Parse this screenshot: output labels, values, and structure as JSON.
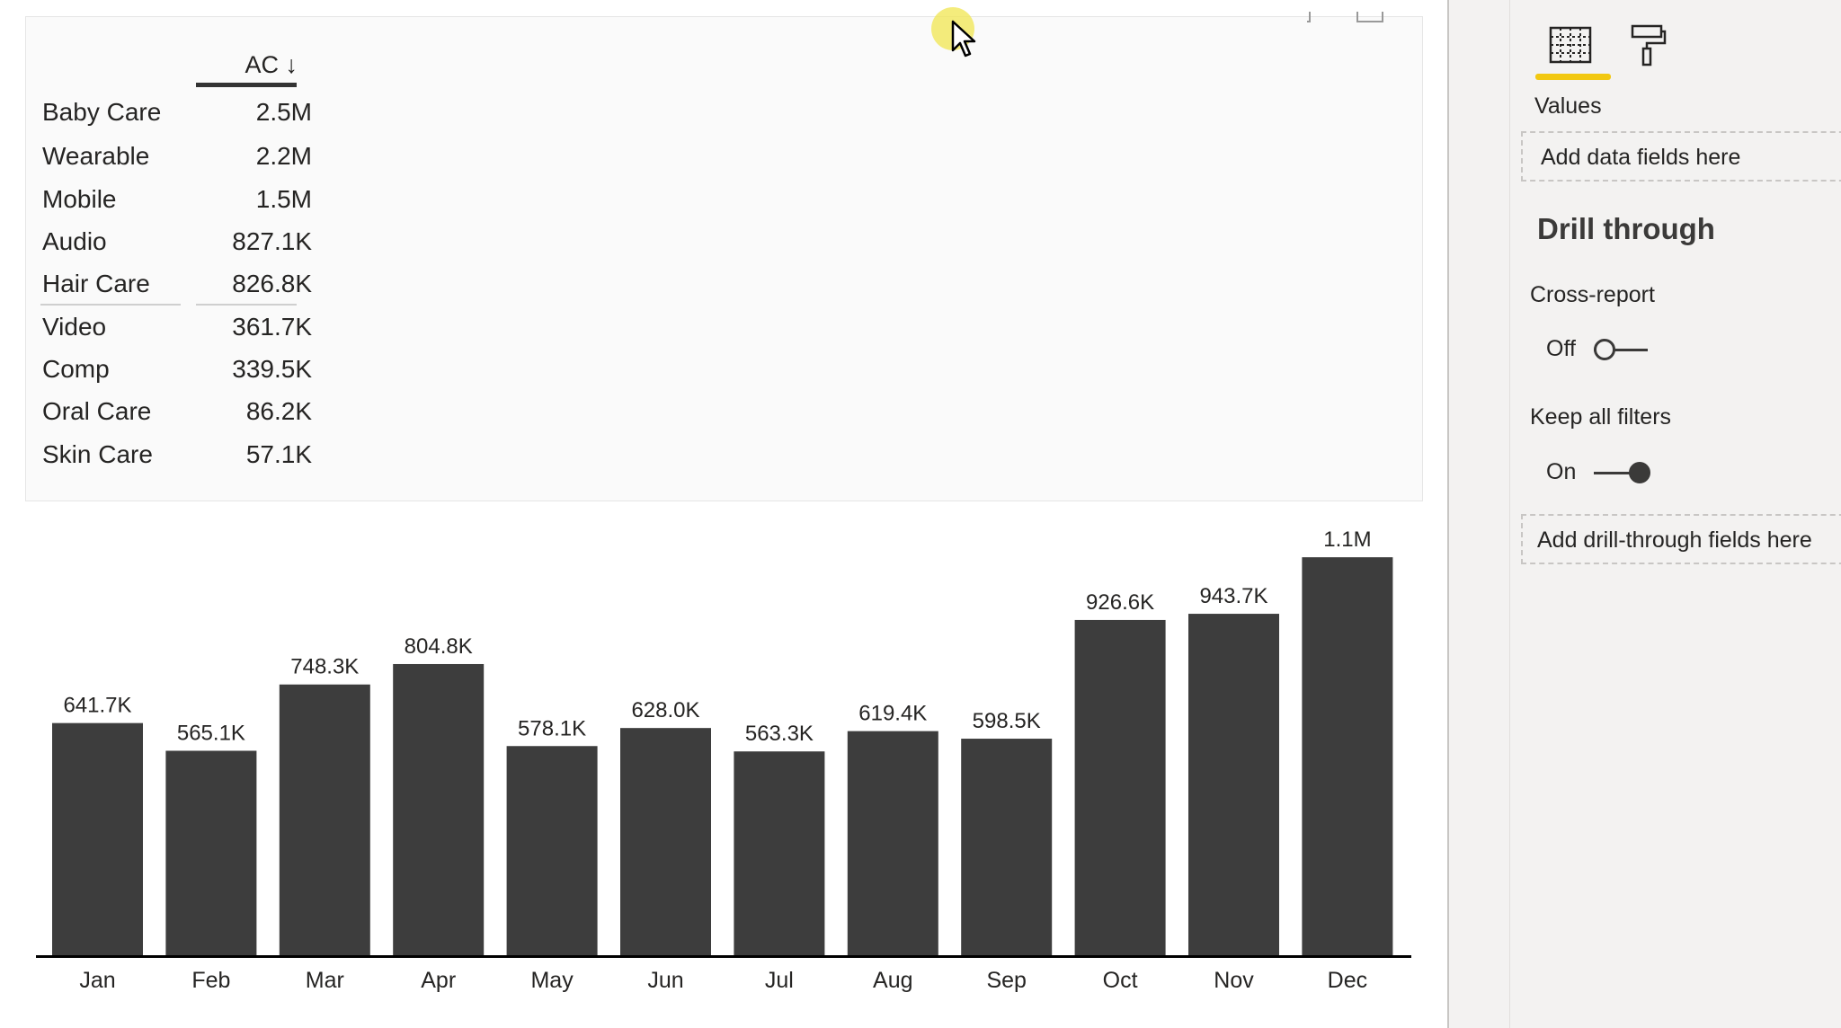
{
  "table": {
    "header": "AC ↓",
    "rows": [
      {
        "category": "Baby Care",
        "value": "2.5M"
      },
      {
        "category": "Wearable",
        "value": "2.2M"
      },
      {
        "category": "Mobile",
        "value": "1.5M"
      },
      {
        "category": "Audio",
        "value": "827.1K"
      },
      {
        "category": "Hair Care",
        "value": "826.8K"
      },
      {
        "category": "Video",
        "value": "361.7K"
      },
      {
        "category": "Comp",
        "value": "339.5K"
      },
      {
        "category": "Oral Care",
        "value": "86.2K"
      },
      {
        "category": "Skin Care",
        "value": "57.1K"
      }
    ]
  },
  "chart_data": {
    "type": "bar",
    "categories": [
      "Jan",
      "Feb",
      "Mar",
      "Apr",
      "May",
      "Jun",
      "Jul",
      "Aug",
      "Sep",
      "Oct",
      "Nov",
      "Dec"
    ],
    "values": [
      641.7,
      565.1,
      748.3,
      804.8,
      578.1,
      628.0,
      563.3,
      619.4,
      598.5,
      926.6,
      943.7,
      1100
    ],
    "labels": [
      "641.7K",
      "565.1K",
      "748.3K",
      "804.8K",
      "578.1K",
      "628.0K",
      "563.3K",
      "619.4K",
      "598.5K",
      "926.6K",
      "943.7K",
      "1.1M"
    ],
    "ylim": [
      0,
      1150
    ],
    "bar_color": "#3d3d3d",
    "grid": false
  },
  "pane": {
    "tabs": [
      {
        "name": "fields-tab",
        "icon": "table-grid-icon"
      },
      {
        "name": "format-tab",
        "icon": "paint-roller-icon"
      }
    ],
    "values_label": "Values",
    "values_well_placeholder": "Add data fields here",
    "drill_title": "Drill through",
    "cross_report_label": "Cross-report",
    "cross_report_state": "Off",
    "keep_filters_label": "Keep all filters",
    "keep_filters_state": "On",
    "drill_well_placeholder": "Add drill-through fields here",
    "accent": "#f2c811"
  }
}
